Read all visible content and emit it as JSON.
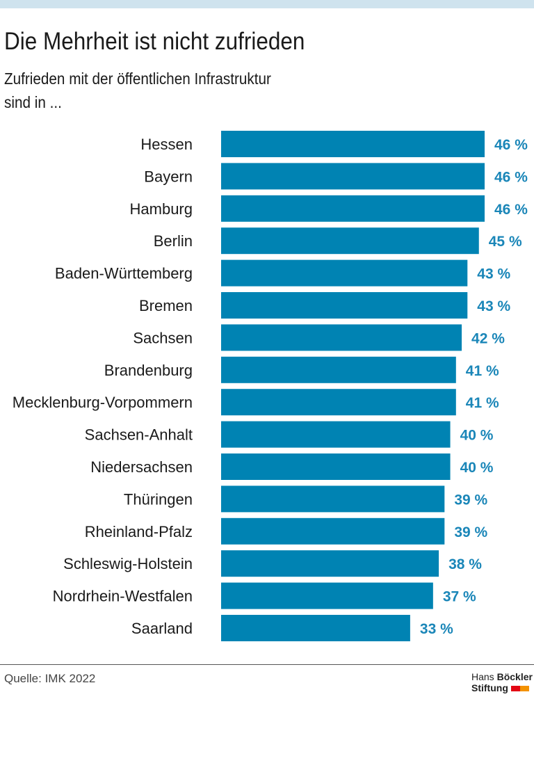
{
  "header": {
    "title": "Die Mehrheit ist nicht zufrieden",
    "subtitle_line1": "Zufrieden mit der öffentlichen Infrastruktur",
    "subtitle_line2": "sind in ..."
  },
  "chart_data": {
    "type": "bar",
    "orientation": "horizontal",
    "categories": [
      "Hessen",
      "Bayern",
      "Hamburg",
      "Berlin",
      "Baden-Württemberg",
      "Bremen",
      "Sachsen",
      "Brandenburg",
      "Mecklenburg-Vorpommern",
      "Sachsen-Anhalt",
      "Niedersachsen",
      "Thüringen",
      "Rheinland-Pfalz",
      "Schleswig-Holstein",
      "Nordrhein-Westfalen",
      "Saarland"
    ],
    "values": [
      46,
      46,
      46,
      45,
      43,
      43,
      42,
      41,
      41,
      40,
      40,
      39,
      39,
      38,
      37,
      33
    ],
    "value_labels": [
      "46 %",
      "46 %",
      "46 %",
      "45 %",
      "43 %",
      "43 %",
      "42 %",
      "41 %",
      "41 %",
      "40 %",
      "40 %",
      "39 %",
      "39 %",
      "38 %",
      "37 %",
      "33 %"
    ],
    "unit": "%",
    "xlim": [
      0,
      46
    ],
    "grid": false,
    "bar_color": "#0083b3",
    "label_color": "#1a86b8"
  },
  "footer": {
    "source": "Quelle: IMK 2022",
    "logo_line1_a": "Hans",
    "logo_line1_b": "Böckler",
    "logo_line2": "Stiftung",
    "logo_colors": [
      "#e30613",
      "#f39200"
    ]
  }
}
